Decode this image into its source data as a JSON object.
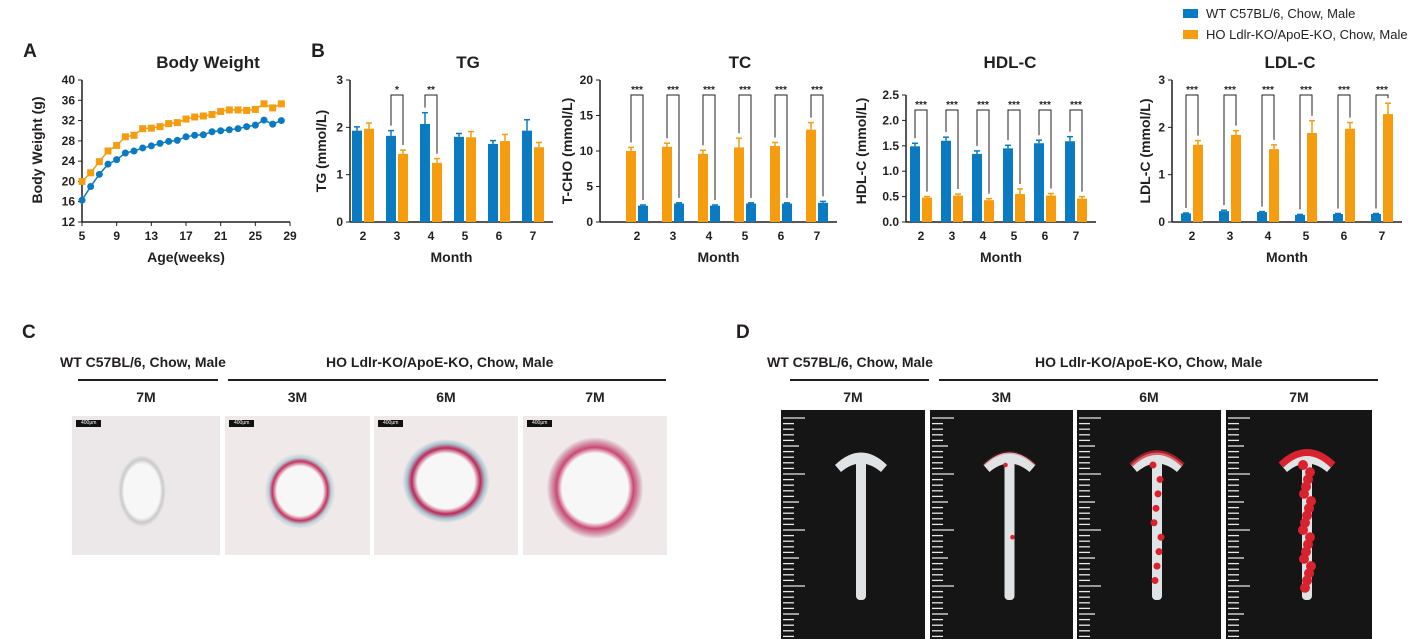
{
  "colors": {
    "wt": "#0a7bc1",
    "ho": "#f59c0f"
  },
  "legend": [
    {
      "label": "WT C57BL/6, Chow, Male",
      "color": "#0a7bc1"
    },
    {
      "label": "HO Ldlr-KO/ApoE-KO, Chow, Male",
      "color": "#f59c0f"
    }
  ],
  "panels": {
    "a": "A",
    "b": "B",
    "c": "C",
    "d": "D"
  },
  "chart_data": [
    {
      "type": "line",
      "title": "Body Weight",
      "xlabel": "Age(weeks)",
      "ylabel": "Body Weight (g)",
      "xlim": [
        5,
        29
      ],
      "ylim": [
        12,
        40
      ],
      "xticks": [
        5,
        9,
        13,
        17,
        21,
        25,
        29
      ],
      "yticks": [
        12,
        16,
        20,
        24,
        28,
        32,
        36,
        40
      ],
      "x": [
        5,
        6,
        7,
        8,
        9,
        10,
        11,
        12,
        13,
        14,
        15,
        16,
        17,
        18,
        19,
        20,
        21,
        22,
        23,
        24,
        25,
        26,
        27,
        28
      ],
      "series": [
        {
          "name": "WT C57BL/6, Chow, Male",
          "values": [
            16.3,
            19.0,
            21.4,
            23.4,
            24.3,
            25.6,
            26.0,
            26.6,
            27.0,
            27.5,
            27.9,
            28.1,
            28.8,
            29.1,
            29.2,
            29.8,
            30.0,
            30.2,
            30.4,
            30.8,
            31.1,
            32.1,
            31.3,
            32.0
          ]
        },
        {
          "name": "HO Ldlr-KO/ApoE-KO, Chow, Male",
          "values": [
            20.0,
            21.7,
            23.9,
            26.0,
            27.1,
            28.8,
            29.1,
            30.4,
            30.5,
            30.8,
            31.4,
            31.6,
            32.3,
            32.7,
            32.9,
            33.2,
            33.8,
            34.1,
            34.1,
            34.0,
            34.2,
            35.3,
            34.5,
            35.3
          ]
        }
      ]
    },
    {
      "type": "bar",
      "title": "TG",
      "xlabel": "Month",
      "ylabel": "TG (mmol/L)",
      "ylim": [
        0,
        3
      ],
      "yticks": [
        "0",
        "1",
        "2",
        "3"
      ],
      "categories": [
        "2",
        "3",
        "4",
        "5",
        "6",
        "7"
      ],
      "series": [
        {
          "name": "WT C57BL/6, Chow, Male",
          "values": [
            1.93,
            1.82,
            2.07,
            1.8,
            1.65,
            1.93
          ],
          "errors": [
            0.08,
            0.11,
            0.24,
            0.07,
            0.07,
            0.23
          ]
        },
        {
          "name": "HO Ldlr-KO/ApoE-KO, Chow, Male",
          "values": [
            1.97,
            1.44,
            1.25,
            1.79,
            1.71,
            1.58
          ],
          "errors": [
            0.12,
            0.08,
            0.09,
            0.12,
            0.14,
            0.1
          ]
        }
      ],
      "significance": [
        "",
        "*",
        "**",
        "",
        "",
        ""
      ]
    },
    {
      "type": "bar",
      "title": "TC",
      "xlabel": "Month",
      "ylabel": "T-CHO (mmol/L)",
      "ylim": [
        0,
        20
      ],
      "yticks": [
        "0",
        "5",
        "10",
        "15",
        "20"
      ],
      "categories": [
        "2",
        "3",
        "4",
        "5",
        "6",
        "7"
      ],
      "series": [
        {
          "name": "HO Ldlr-KO/ApoE-KO, Chow, Male",
          "values": [
            10.0,
            10.6,
            9.6,
            10.5,
            10.7,
            13.0
          ],
          "errors": [
            0.5,
            0.5,
            0.5,
            1.3,
            0.5,
            1.0
          ]
        },
        {
          "name": "WT C57BL/6, Chow, Male",
          "values": [
            2.3,
            2.6,
            2.3,
            2.6,
            2.6,
            2.7
          ],
          "errors": [
            0.1,
            0.1,
            0.1,
            0.1,
            0.1,
            0.2
          ]
        }
      ],
      "significance": [
        "***",
        "***",
        "***",
        "***",
        "***",
        "***"
      ]
    },
    {
      "type": "bar",
      "title": "HDL-C",
      "xlabel": "Month",
      "ylabel": "HDL-C (mmol/L)",
      "ylim": [
        0,
        2.5
      ],
      "yticks": [
        "0.0",
        "0.5",
        "1.0",
        "1.5",
        "2.0",
        "2.5"
      ],
      "categories": [
        "2",
        "3",
        "4",
        "5",
        "6",
        "7"
      ],
      "series": [
        {
          "name": "WT C57BL/6, Chow, Male",
          "values": [
            1.49,
            1.6,
            1.34,
            1.45,
            1.55,
            1.59
          ],
          "errors": [
            0.06,
            0.07,
            0.06,
            0.06,
            0.06,
            0.09
          ]
        },
        {
          "name": "HO Ldlr-KO/ApoE-KO, Chow, Male",
          "values": [
            0.48,
            0.52,
            0.43,
            0.55,
            0.52,
            0.46
          ],
          "errors": [
            0.02,
            0.03,
            0.03,
            0.1,
            0.04,
            0.04
          ]
        }
      ],
      "significance": [
        "***",
        "***",
        "***",
        "***",
        "***",
        "***"
      ]
    },
    {
      "type": "bar",
      "title": "LDL-C",
      "xlabel": "Month",
      "ylabel": "LDL-C (mmol/L)",
      "ylim": [
        0,
        3
      ],
      "yticks": [
        "0",
        "1",
        "2",
        "3"
      ],
      "categories": [
        "2",
        "3",
        "4",
        "5",
        "6",
        "7"
      ],
      "series": [
        {
          "name": "WT C57BL/6, Chow, Male",
          "values": [
            0.18,
            0.23,
            0.21,
            0.15,
            0.17,
            0.17
          ],
          "errors": [
            0.01,
            0.02,
            0.01,
            0.01,
            0.01,
            0.01
          ]
        },
        {
          "name": "HO Ldlr-KO/ApoE-KO, Chow, Male",
          "values": [
            1.63,
            1.84,
            1.54,
            1.88,
            1.97,
            2.28
          ],
          "errors": [
            0.09,
            0.09,
            0.09,
            0.26,
            0.13,
            0.23
          ]
        }
      ],
      "significance": [
        "***",
        "***",
        "***",
        "***",
        "***",
        "***"
      ]
    }
  ],
  "panel_c": {
    "wt_group": "WT C57BL/6, Chow, Male",
    "ho_group": "HO Ldlr-KO/ApoE-KO, Chow, Male",
    "timepoints": [
      "7M",
      "3M",
      "6M",
      "7M"
    ],
    "scale_bar": "400μm"
  },
  "panel_d": {
    "wt_group": "WT C57BL/6, Chow, Male",
    "ho_group": "HO Ldlr-KO/ApoE-KO, Chow, Male",
    "timepoints": [
      "7M",
      "3M",
      "6M",
      "7M"
    ]
  }
}
